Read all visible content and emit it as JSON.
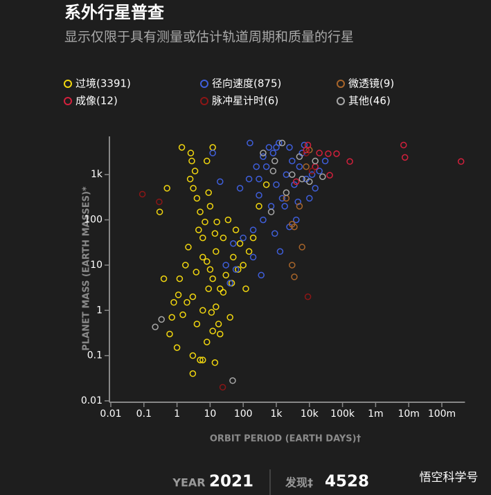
{
  "header": {
    "title": "系外行星普查",
    "subtitle": "显示仅限于具有测量或估计轨道周期和质量的行星"
  },
  "chart_data": {
    "type": "scatter",
    "x_label": "ORBIT PERIOD (EARTH DAYS)†",
    "y_label": "PLANET MASS (EARTH MASSES)*",
    "log_x": true,
    "log_y": true,
    "xlim": [
      0.01,
      500000000
    ],
    "ylim": [
      0.01,
      7000
    ],
    "xticks": [
      0.01,
      0.1,
      1,
      10,
      100,
      {
        "value": 1000,
        "label": "1k"
      },
      {
        "value": 10000,
        "label": "10k"
      },
      {
        "value": 100000,
        "label": "100k"
      },
      {
        "value": 1000000,
        "label": "1m"
      },
      {
        "value": 10000000,
        "label": "10m"
      },
      {
        "value": 100000000,
        "label": "100m"
      }
    ],
    "yticks": [
      0.01,
      0.1,
      1,
      10,
      100,
      {
        "value": 1000,
        "label": "1k"
      }
    ],
    "series": [
      {
        "name": "过境(3391)",
        "color": "#f2d70f",
        "x": [
          1.2,
          2.5,
          3.1,
          3.5,
          4,
          2.8,
          5,
          6,
          8,
          10,
          12,
          15,
          20,
          30,
          50,
          80,
          1.5,
          2,
          3,
          4,
          6,
          9,
          11,
          15,
          25,
          40,
          0.8,
          0.6,
          1,
          3,
          5,
          8,
          12,
          18,
          1.8,
          2.2,
          4.5,
          7,
          10,
          14,
          35,
          60,
          150,
          200,
          300,
          500,
          9,
          2.6,
          1.4,
          0.5,
          0.3,
          0.4,
          0.7,
          20,
          100,
          45,
          70,
          120,
          25,
          6,
          3.8,
          1.1,
          16,
          8,
          12,
          3,
          6,
          14
        ],
        "values": [
          5,
          800,
          500,
          1200,
          300,
          2000,
          150,
          40,
          12,
          8,
          5,
          20,
          3,
          6,
          15,
          30,
          0.8,
          1.5,
          2,
          0.5,
          1,
          3,
          0.9,
          1.2,
          2.5,
          0.7,
          1.5,
          0.3,
          0.15,
          0.1,
          0.08,
          0.2,
          0.35,
          0.5,
          10,
          25,
          60,
          90,
          200,
          50,
          100,
          60,
          20,
          40,
          200,
          600,
          400,
          3000,
          4000,
          500,
          150,
          5,
          0.7,
          0.3,
          10,
          4,
          8,
          3,
          40,
          15,
          7,
          2.2,
          90,
          2000,
          4000,
          0.04,
          0.08,
          0.07
        ]
      },
      {
        "name": "径向速度(875)",
        "color": "#3f5fdc",
        "x": [
          300,
          500,
          800,
          1000,
          2000,
          3000,
          1500,
          700,
          400,
          200,
          100,
          50,
          30,
          1200,
          2500,
          5000,
          8000,
          10000,
          20000,
          30000,
          400,
          600,
          1800,
          3500,
          6000,
          250,
          150,
          80,
          15000,
          4000,
          900,
          1300,
          40,
          60,
          200,
          350,
          1000,
          7000,
          12000,
          2500,
          4500,
          300,
          20,
          12,
          160
        ],
        "values": [
          800,
          1500,
          3000,
          600,
          1000,
          2000,
          300,
          200,
          100,
          60,
          40,
          30,
          10,
          5000,
          4000,
          1500,
          800,
          300,
          1200,
          2000,
          2500,
          4000,
          200,
          600,
          3000,
          1500,
          800,
          500,
          500,
          100,
          50,
          20,
          4,
          8,
          15,
          6,
          4000,
          4500,
          1000,
          70,
          250,
          350,
          700,
          3000,
          5000
        ]
      },
      {
        "name": "微透镜(9)",
        "color": "#a8652a",
        "x": [
          3000,
          3500,
          3000,
          3500,
          5000,
          8000,
          10000,
          2000,
          6000
        ],
        "values": [
          80,
          70,
          10,
          5.5,
          200,
          1500,
          3500,
          300,
          25
        ]
      },
      {
        "name": "成像(12)",
        "color": "#d3203c",
        "x": [
          7000000,
          7700000,
          380000000,
          166000,
          66000,
          37000,
          41000,
          8000,
          9000,
          20000,
          4000,
          15000
        ],
        "values": [
          4500,
          2400,
          1950,
          1950,
          2900,
          2900,
          970,
          3500,
          4500,
          3000,
          700,
          1500
        ]
      },
      {
        "name": "脉冲星计时(6)",
        "color": "#8c1616",
        "x": [
          0.09,
          0.29,
          24,
          9000,
          8000,
          12000
        ],
        "values": [
          370,
          250,
          0.02,
          2,
          3000,
          1200
        ]
      },
      {
        "name": "其他(46)",
        "color": "#a8a8a8",
        "x": [
          0.22,
          0.34,
          48,
          3000,
          5000,
          800,
          15000,
          2000,
          10000,
          1500,
          400,
          700,
          6000,
          25000,
          900
        ],
        "values": [
          0.43,
          0.63,
          0.028,
          1000,
          2500,
          1200,
          2000,
          400,
          700,
          5000,
          3000,
          150,
          800,
          900,
          2000
        ]
      }
    ]
  },
  "footer": {
    "year_label": "YEAR",
    "year": "2021",
    "count_label": "发现‡",
    "count": "4528"
  },
  "watermark": "悟空科学号"
}
